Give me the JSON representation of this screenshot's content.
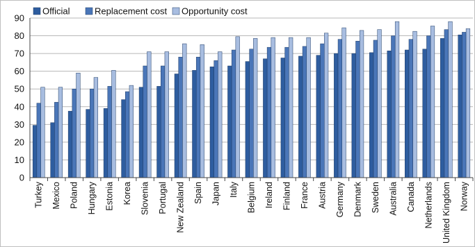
{
  "chart_data": {
    "type": "bar",
    "title": "",
    "xlabel": "",
    "ylabel": "",
    "ylim": [
      0,
      90
    ],
    "yticks": [
      0,
      10,
      20,
      30,
      40,
      50,
      60,
      70,
      80,
      90
    ],
    "grid": true,
    "legend_position": "top-left",
    "categories": [
      "Turkey",
      "Mexico",
      "Poland",
      "Hungary",
      "Estonia",
      "Korea",
      "Slovenia",
      "Portugal",
      "New Zealand",
      "Spain",
      "Japan",
      "Italy",
      "Belgium",
      "Ireland",
      "Finland",
      "France",
      "Austria",
      "Germany",
      "Denmark",
      "Sweden",
      "Australia",
      "Canada",
      "Netherlands",
      "United Kingdom",
      "Norway"
    ],
    "series": [
      {
        "name": "Official",
        "color": "#2e5d9f",
        "values": [
          29.5,
          31,
          37.5,
          38.5,
          39,
          44,
          51,
          51.5,
          58.5,
          60.5,
          62.5,
          63,
          65.5,
          67,
          67.5,
          68.5,
          69,
          70,
          70,
          70.5,
          71.5,
          72,
          72.5,
          78.5,
          80.5
        ]
      },
      {
        "name": "Replacement cost",
        "color": "#4a76b8",
        "values": [
          42,
          42.5,
          50,
          50,
          51.5,
          48.5,
          63,
          63,
          68,
          68,
          66,
          72,
          72.5,
          73.5,
          73.5,
          74,
          75.5,
          78,
          77,
          77.5,
          80,
          78,
          80,
          83.5,
          82
        ]
      },
      {
        "name": "Opportunity cost",
        "color": "#a8bde0",
        "values": [
          51,
          51,
          59,
          56.5,
          60.5,
          52,
          71,
          71,
          75.5,
          75,
          71,
          79.5,
          78.5,
          79,
          79,
          79,
          81.5,
          84.5,
          83,
          83.5,
          88,
          82.5,
          85.5,
          88,
          84
        ]
      }
    ]
  }
}
